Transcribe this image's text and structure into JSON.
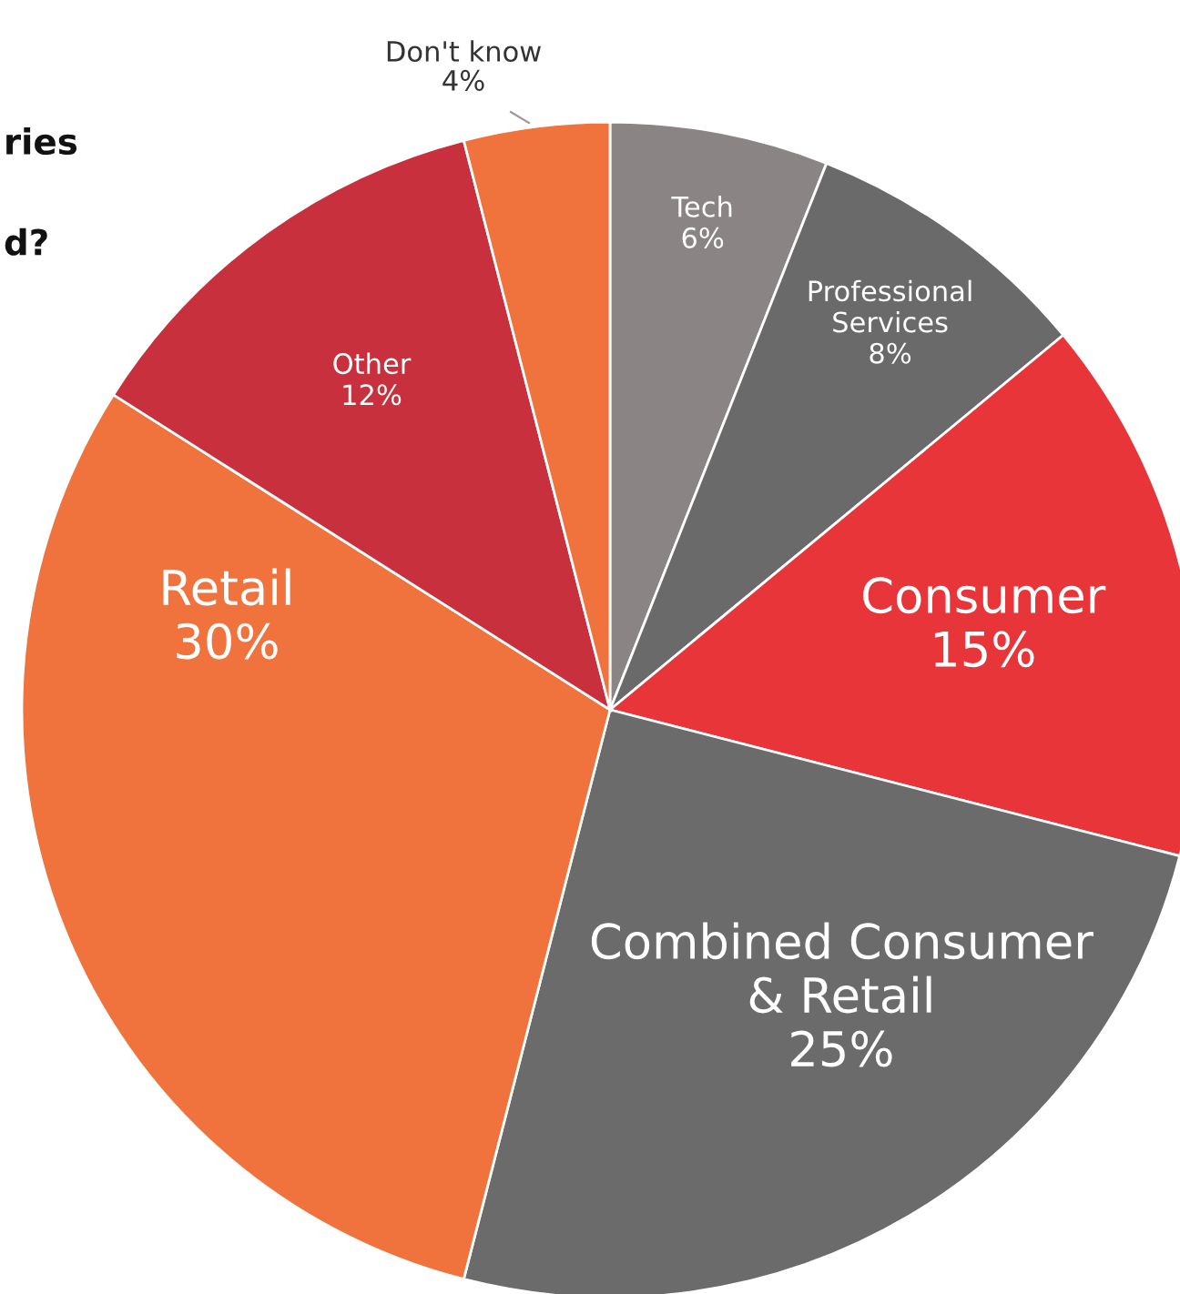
{
  "chart_data": {
    "type": "pie",
    "title": "ries\n\nd?",
    "categories": [
      "Tech",
      "Professional\nServices",
      "Consumer",
      "Combined Consumer\n& Retail",
      "Retail",
      "Other",
      "Don't know"
    ],
    "values": [
      6,
      8,
      15,
      25,
      30,
      12,
      4
    ],
    "colors": [
      "#8a8584",
      "#6b6a6a",
      "#e8353a",
      "#6b6b6b",
      "#f0733d",
      "#c8303e",
      "#f0733d"
    ],
    "value_labels": [
      "6%",
      "8%",
      "15%",
      "25%",
      "30%",
      "12%",
      "4%"
    ]
  }
}
